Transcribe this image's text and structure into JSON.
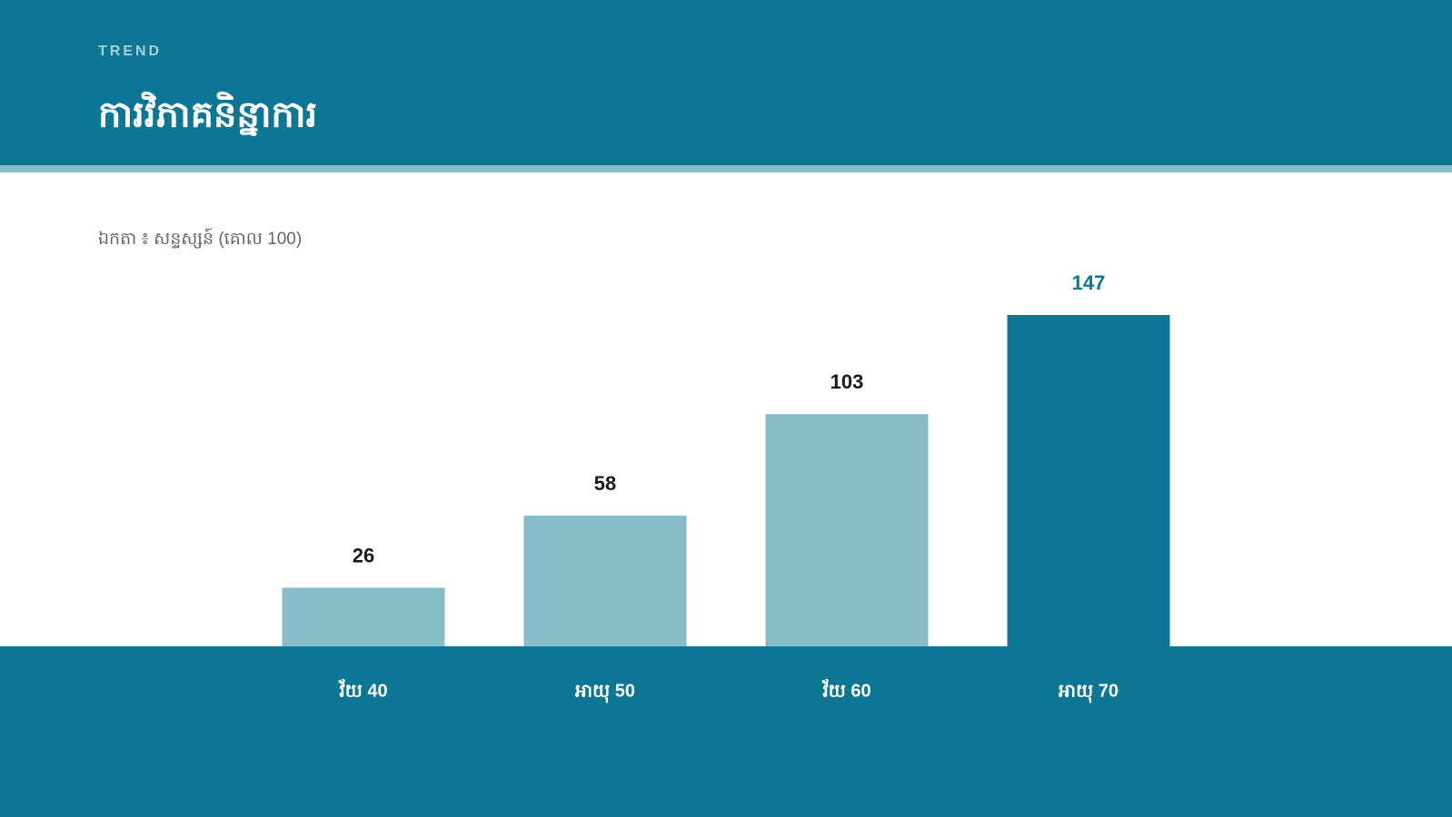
{
  "chart_data": {
    "type": "bar",
    "eyebrow": "TREND",
    "title": "ការវិភាគនិន្នាការ",
    "subtitle": "ឯកតា ៖ សន្ទស្សន៍ (គោល 100)",
    "categories": [
      "វ័យ 40",
      "អាយុ 50",
      "វ័យ 60",
      "អាយុ 70"
    ],
    "values": [
      26,
      58,
      103,
      147
    ],
    "colors": [
      "#87bbc8",
      "#87bbc8",
      "#87bbc8",
      "#0b7794"
    ],
    "value_label_colors": [
      "#1a1a1a",
      "#1a1a1a",
      "#1a1a1a",
      "#0b7794"
    ]
  }
}
